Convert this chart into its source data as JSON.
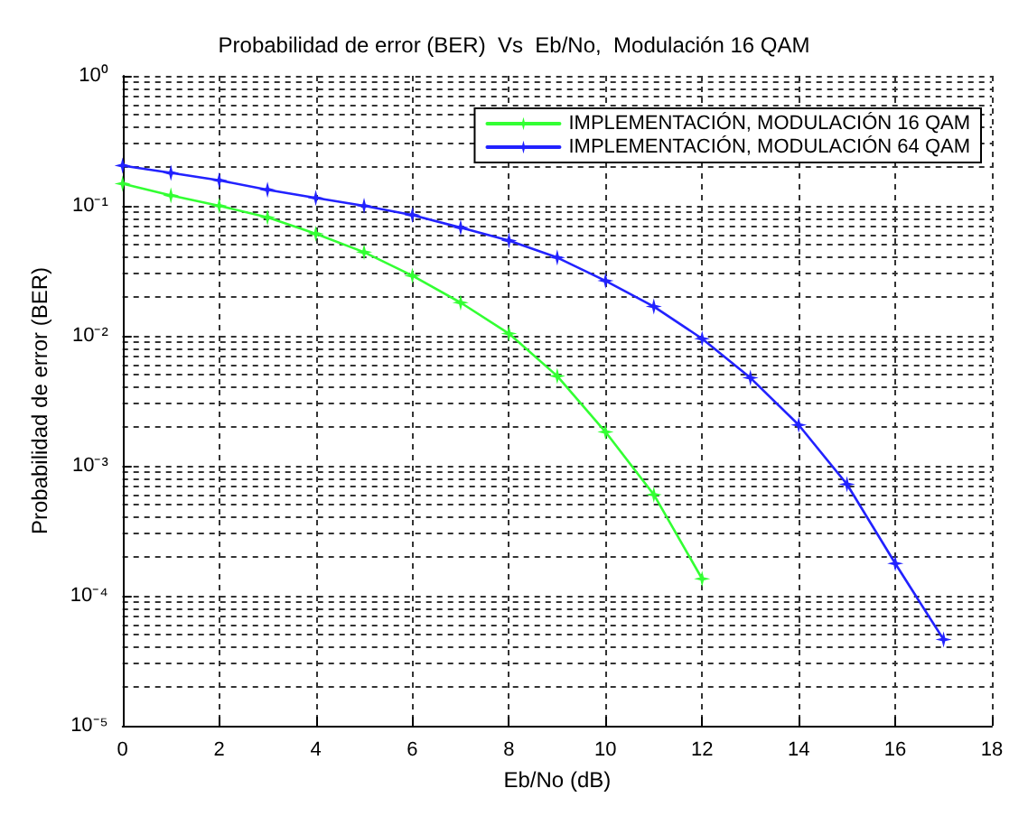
{
  "chart_data": {
    "type": "line",
    "title": "Probabilidad de error (BER)  Vs  Eb/No,  Modulación 16 QAM",
    "xlabel": "Eb/No (dB)",
    "ylabel": "Probabilidad de error (BER)",
    "x": [
      0,
      1,
      2,
      3,
      4,
      5,
      6,
      7,
      8,
      9,
      10,
      11,
      12,
      13,
      14,
      15,
      16,
      17
    ],
    "series": [
      {
        "name": "IMPLEMENTACIÓN, MODULACIÓN 16 QAM",
        "color": "#33ff33",
        "values": [
          0.148,
          0.12,
          0.1,
          0.0815,
          0.061,
          0.044,
          0.029,
          0.018,
          0.0104,
          0.0049,
          0.00182,
          0.0006,
          0.000135,
          null,
          null,
          null,
          null,
          null
        ]
      },
      {
        "name": "IMPLEMENTACIÓN, MODULACIÓN 64 QAM",
        "color": "#2222ff",
        "values": [
          0.204,
          0.179,
          0.157,
          0.133,
          0.115,
          0.1,
          0.085,
          0.068,
          0.054,
          0.04,
          0.0265,
          0.0168,
          0.0095,
          0.00475,
          0.00206,
          0.00072,
          0.000177,
          4.6e-05
        ]
      }
    ],
    "log": "y",
    "xlim": [
      0,
      18
    ],
    "xticks": [
      0,
      2,
      4,
      6,
      8,
      10,
      12,
      14,
      16,
      18
    ],
    "ylim": [
      1e-05,
      1
    ],
    "yticks": [
      {
        "value": 1e-05,
        "label": "10⁻⁵"
      },
      {
        "value": 0.0001,
        "label": "10⁻⁴"
      },
      {
        "value": 0.001,
        "label": "10⁻³"
      },
      {
        "value": 0.01,
        "label": "10⁻²"
      },
      {
        "value": 0.1,
        "label": "10⁻¹"
      },
      {
        "value": 1,
        "label": "10⁰"
      }
    ],
    "grid": true,
    "legend": "top right",
    "marker": "star",
    "line_style": "solid"
  }
}
